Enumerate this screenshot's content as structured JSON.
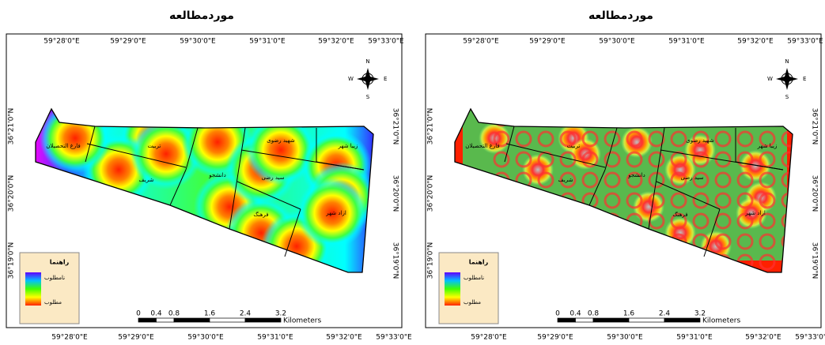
{
  "maps": [
    {
      "title": "موردمطالعه",
      "lon_labels": [
        "59°28'0\"E",
        "59°29'0\"E",
        "59°30'0\"E",
        "59°31'0\"E",
        "59°32'0\"E",
        "59°33'0\"E"
      ],
      "lat_labels": [
        "36°21'0\"N",
        "36°20'0\"N",
        "36°19'0\"N"
      ],
      "regions": [
        "فارغ التحصیلان",
        "تربیت",
        "شریف",
        "دانشجو",
        "سید رضی",
        "شهید رضوی",
        "زیبا شهر",
        "فرهنگ",
        "ازاد شهر"
      ],
      "legend": {
        "title": "راهنما",
        "low": "نامطلوب",
        "high": "مطلوب"
      },
      "scale": {
        "ticks": [
          0,
          0.4,
          0.8,
          1.6,
          2.4,
          3.2
        ],
        "unit": "Kilometers"
      },
      "compass": {
        "n": "N",
        "s": "S",
        "e": "E",
        "w": "W"
      }
    },
    {
      "title": "موردمطالعه",
      "lon_labels": [
        "59°28'0\"E",
        "59°29'0\"E",
        "59°30'0\"E",
        "59°31'0\"E",
        "59°32'0\"E",
        "59°33'0\"E"
      ],
      "lat_labels": [
        "36°21'0\"N",
        "36°20'0\"N",
        "36°19'0\"N"
      ],
      "regions": [
        "فارغ التحصیلان",
        "تربیت",
        "شریف",
        "دانشجو",
        "سید رضی",
        "شهید رضوی",
        "زیبا شهر",
        "فرهنگ",
        "ازاد شهر"
      ],
      "legend": {
        "title": "راهنما",
        "low": "نامطلوب",
        "high": "مطلوب"
      },
      "scale": {
        "ticks": [
          0,
          0.4,
          0.8,
          1.6,
          2.4,
          3.2
        ],
        "unit": "Kilometers"
      },
      "compass": {
        "n": "N",
        "s": "S",
        "e": "E",
        "w": "W"
      }
    }
  ]
}
